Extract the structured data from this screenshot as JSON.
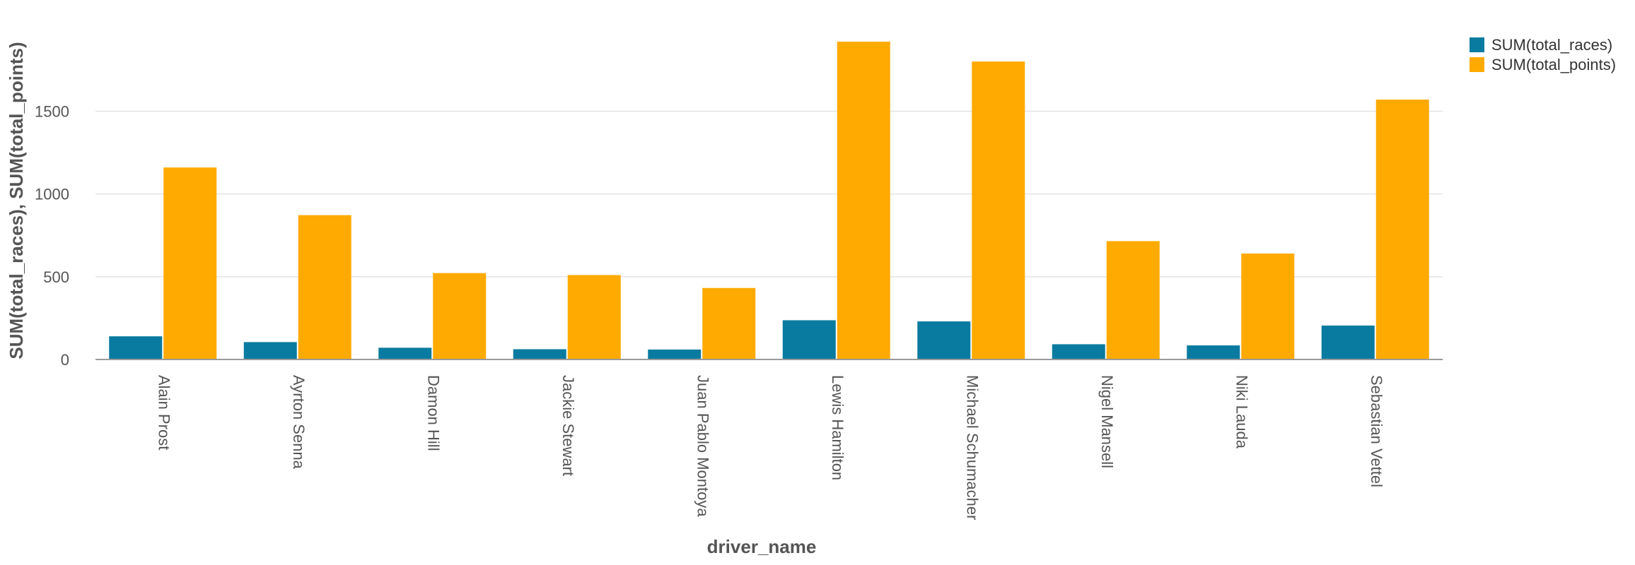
{
  "chart_data": {
    "type": "bar",
    "xlabel": "driver_name",
    "ylabel": "SUM(total_races), SUM(total_points)",
    "categories": [
      "Alain Prost",
      "Ayrton Senna",
      "Damon Hill",
      "Jackie Stewart",
      "Juan Pablo Montoya",
      "Lewis Hamilton",
      "Michael Schumacher",
      "Nigel Mansell",
      "Niki Lauda",
      "Sebastian Vettel"
    ],
    "series": [
      {
        "name": "SUM(total_races)",
        "color": "#0a7ba0",
        "values": [
          140,
          105,
          71,
          62,
          60,
          237,
          230,
          92,
          85,
          205
        ]
      },
      {
        "name": "SUM(total_points)",
        "color": "#ffaa00",
        "values": [
          1160,
          872,
          522,
          510,
          432,
          1920,
          1800,
          715,
          640,
          1570
        ]
      }
    ],
    "yticks": [
      0,
      500,
      1000,
      1500
    ],
    "ylim": [
      0,
      1920
    ],
    "grid": true,
    "legend": "top-right"
  }
}
